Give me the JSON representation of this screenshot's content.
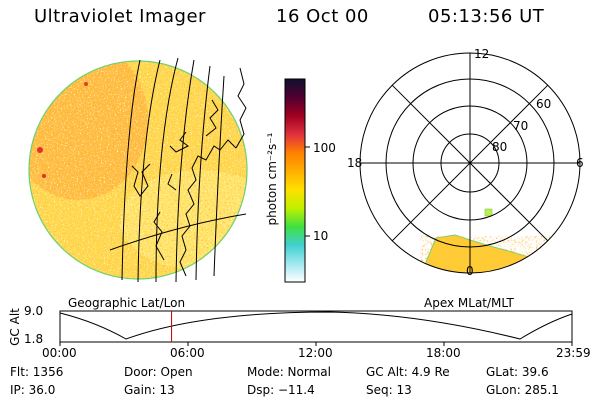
{
  "header": {
    "instrument": "Ultraviolet Imager",
    "date": "16 Oct 00",
    "time": "05:13:56 UT"
  },
  "colorbar": {
    "label": "photon cm⁻²s⁻¹",
    "ticks": [
      "100",
      "10"
    ],
    "colors": [
      "#101030",
      "#500030",
      "#a00020",
      "#e03040",
      "#ff8000",
      "#ffb000",
      "#ffe000",
      "#c0f000",
      "#40e040",
      "#40d0d0",
      "#a0e8f0",
      "#ffffff"
    ]
  },
  "polar": {
    "mlt_labels": {
      "top": "12",
      "left": "18",
      "right": "6",
      "bottom": "0"
    },
    "lat_labels": [
      "60",
      "70",
      "80"
    ]
  },
  "timeline": {
    "left_label": "Geographic Lat/Lon",
    "right_label": "Apex MLat/MLT",
    "axis_label": "GC Alt",
    "y_top": "9.0",
    "y_bottom": "1.8",
    "x_ticks": [
      "00:00",
      "06:00",
      "12:00",
      "18:00",
      "23:59"
    ],
    "cursor_hours": 5.23
  },
  "info": {
    "flt": "Flt: 1356",
    "ip": "IP: 36.0",
    "door": "Door: Open",
    "gain": "Gain: 13",
    "mode": "Mode: Normal",
    "dsp": "Dsp:  −11.4",
    "gcalt": "GC Alt: 4.9 Re",
    "seq": "Seq: 13",
    "glat": "GLat:  39.6",
    "glon": "GLon: 285.1"
  }
}
